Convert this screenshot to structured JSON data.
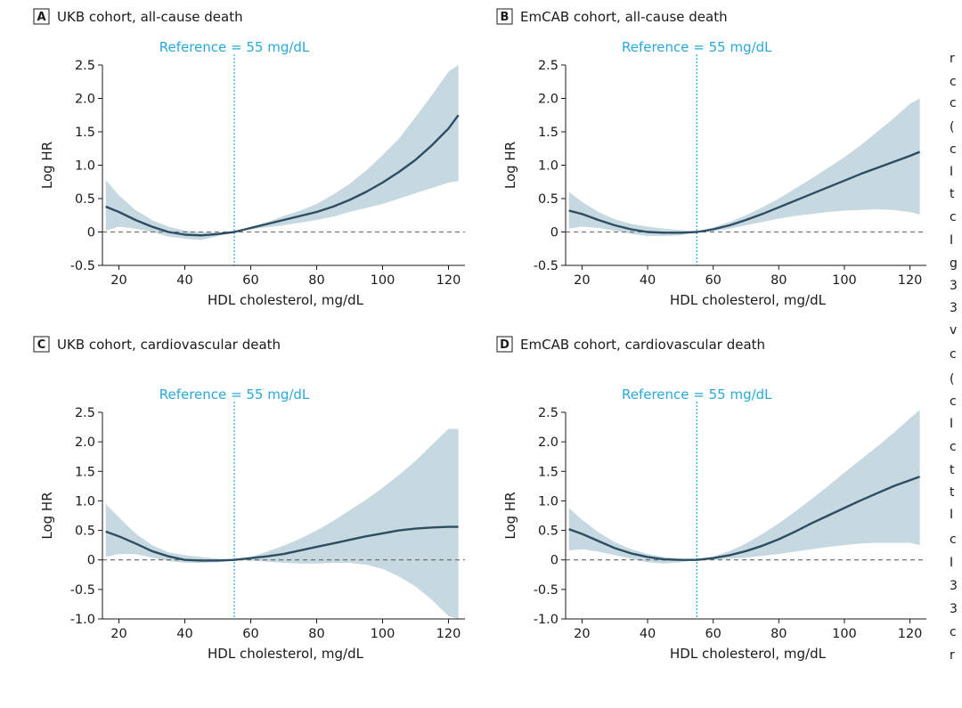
{
  "sidebar_fragments": [
    "r",
    "c",
    "c",
    "(",
    "c",
    "I",
    "t",
    "c",
    "I",
    "g",
    "3",
    "3",
    "v",
    "c",
    "(",
    "c",
    "I",
    "c",
    "t",
    "t",
    "I",
    "c",
    "I",
    "3",
    "3",
    "c",
    "r"
  ],
  "chart_data": [
    {
      "type": "line",
      "panel_letter": "A",
      "title": "UKB cohort, all-cause death",
      "xlabel": "HDL cholesterol, mg/dL",
      "ylabel": "Log HR",
      "reference_label": "Reference = 55 mg/dL",
      "reference_x": 55,
      "xlim": [
        15,
        125
      ],
      "ylim": [
        -0.5,
        2.5
      ],
      "xticks": [
        20,
        40,
        60,
        80,
        100,
        120
      ],
      "yticks": [
        -0.5,
        0,
        0.5,
        1.0,
        1.5,
        2.0,
        2.5
      ],
      "ytick_labels": [
        "-0.5",
        "0",
        "0.5",
        "1.0",
        "1.5",
        "2.0",
        "2.5"
      ],
      "series": [
        {
          "name": "Log HR",
          "x": [
            16,
            20,
            25,
            30,
            35,
            40,
            45,
            50,
            55,
            60,
            65,
            70,
            75,
            80,
            85,
            90,
            95,
            100,
            105,
            110,
            115,
            120,
            123
          ],
          "y": [
            0.38,
            0.3,
            0.18,
            0.08,
            0.0,
            -0.04,
            -0.05,
            -0.03,
            0.0,
            0.06,
            0.12,
            0.18,
            0.24,
            0.3,
            0.38,
            0.48,
            0.6,
            0.74,
            0.9,
            1.08,
            1.3,
            1.55,
            1.75
          ]
        },
        {
          "name": "95% CI upper",
          "x": [
            16,
            20,
            25,
            30,
            35,
            40,
            45,
            50,
            55,
            60,
            65,
            70,
            75,
            80,
            85,
            90,
            95,
            100,
            105,
            110,
            115,
            120,
            123
          ],
          "y": [
            0.78,
            0.55,
            0.33,
            0.18,
            0.08,
            0.02,
            0.0,
            -0.01,
            0.0,
            0.08,
            0.15,
            0.24,
            0.32,
            0.42,
            0.56,
            0.72,
            0.92,
            1.15,
            1.4,
            1.72,
            2.05,
            2.4,
            2.5
          ]
        },
        {
          "name": "95% CI lower",
          "x": [
            16,
            20,
            25,
            30,
            35,
            40,
            45,
            50,
            55,
            60,
            65,
            70,
            75,
            80,
            85,
            90,
            95,
            100,
            105,
            110,
            115,
            120,
            123
          ],
          "y": [
            0.02,
            0.08,
            0.05,
            0.0,
            -0.07,
            -0.1,
            -0.12,
            -0.06,
            0.0,
            0.04,
            0.07,
            0.1,
            0.14,
            0.18,
            0.23,
            0.3,
            0.36,
            0.42,
            0.5,
            0.58,
            0.66,
            0.74,
            0.76
          ]
        }
      ]
    },
    {
      "type": "line",
      "panel_letter": "B",
      "title": "EmCAB cohort, all-cause death",
      "xlabel": "HDL cholesterol, mg/dL",
      "ylabel": "Log HR",
      "reference_label": "Reference = 55 mg/dL",
      "reference_x": 55,
      "xlim": [
        15,
        125
      ],
      "ylim": [
        -0.5,
        2.5
      ],
      "xticks": [
        20,
        40,
        60,
        80,
        100,
        120
      ],
      "yticks": [
        -0.5,
        0,
        0.5,
        1.0,
        1.5,
        2.0,
        2.5
      ],
      "ytick_labels": [
        "-0.5",
        "0",
        "0.5",
        "1.0",
        "1.5",
        "2.0",
        "2.5"
      ],
      "series": [
        {
          "name": "Log HR",
          "x": [
            16,
            20,
            25,
            30,
            35,
            40,
            45,
            50,
            55,
            60,
            65,
            70,
            75,
            80,
            85,
            90,
            95,
            100,
            105,
            110,
            115,
            120,
            123
          ],
          "y": [
            0.32,
            0.27,
            0.18,
            0.1,
            0.04,
            0.0,
            -0.01,
            -0.01,
            0.0,
            0.04,
            0.1,
            0.18,
            0.27,
            0.37,
            0.47,
            0.57,
            0.67,
            0.77,
            0.87,
            0.96,
            1.05,
            1.14,
            1.2
          ]
        },
        {
          "name": "95% CI upper",
          "x": [
            16,
            20,
            25,
            30,
            35,
            40,
            45,
            50,
            55,
            60,
            65,
            70,
            75,
            80,
            85,
            90,
            95,
            100,
            105,
            110,
            115,
            120,
            123
          ],
          "y": [
            0.6,
            0.45,
            0.3,
            0.19,
            0.12,
            0.08,
            0.05,
            0.03,
            0.0,
            0.07,
            0.15,
            0.25,
            0.37,
            0.5,
            0.65,
            0.8,
            0.96,
            1.12,
            1.3,
            1.5,
            1.7,
            1.92,
            2.0
          ]
        },
        {
          "name": "95% CI lower",
          "x": [
            16,
            20,
            25,
            30,
            35,
            40,
            45,
            50,
            55,
            60,
            65,
            70,
            75,
            80,
            85,
            90,
            95,
            100,
            105,
            110,
            115,
            120,
            123
          ],
          "y": [
            0.05,
            0.08,
            0.06,
            0.02,
            -0.03,
            -0.06,
            -0.06,
            -0.05,
            0.0,
            0.01,
            0.05,
            0.1,
            0.15,
            0.2,
            0.24,
            0.27,
            0.3,
            0.32,
            0.33,
            0.34,
            0.33,
            0.3,
            0.26
          ]
        }
      ]
    },
    {
      "type": "line",
      "panel_letter": "C",
      "title": "UKB cohort, cardiovascular death",
      "xlabel": "HDL cholesterol, mg/dL",
      "ylabel": "Log HR",
      "reference_label": "Reference = 55 mg/dL",
      "reference_x": 55,
      "xlim": [
        15,
        125
      ],
      "ylim": [
        -1.0,
        2.5
      ],
      "xticks": [
        20,
        40,
        60,
        80,
        100,
        120
      ],
      "yticks": [
        -1.0,
        -0.5,
        0,
        0.5,
        1.0,
        1.5,
        2.0,
        2.5
      ],
      "ytick_labels": [
        "-1.0",
        "-0.5",
        "0",
        "0.5",
        "1.0",
        "1.5",
        "2.0",
        "2.5"
      ],
      "series": [
        {
          "name": "Log HR",
          "x": [
            16,
            20,
            25,
            30,
            35,
            40,
            45,
            50,
            55,
            60,
            65,
            70,
            75,
            80,
            85,
            90,
            95,
            100,
            105,
            110,
            115,
            120,
            123
          ],
          "y": [
            0.48,
            0.4,
            0.28,
            0.15,
            0.06,
            0.0,
            -0.01,
            -0.01,
            0.0,
            0.03,
            0.06,
            0.1,
            0.16,
            0.22,
            0.28,
            0.34,
            0.4,
            0.45,
            0.5,
            0.53,
            0.55,
            0.56,
            0.56
          ]
        },
        {
          "name": "95% CI upper",
          "x": [
            16,
            20,
            25,
            30,
            35,
            40,
            45,
            50,
            55,
            60,
            65,
            70,
            75,
            80,
            85,
            90,
            95,
            100,
            105,
            110,
            115,
            120,
            123
          ],
          "y": [
            0.95,
            0.72,
            0.45,
            0.25,
            0.13,
            0.08,
            0.05,
            0.02,
            0.0,
            0.05,
            0.14,
            0.24,
            0.36,
            0.5,
            0.66,
            0.84,
            1.02,
            1.22,
            1.44,
            1.68,
            1.95,
            2.22,
            2.22
          ]
        },
        {
          "name": "95% CI lower",
          "x": [
            16,
            20,
            25,
            30,
            35,
            40,
            45,
            50,
            55,
            60,
            65,
            70,
            75,
            80,
            85,
            90,
            95,
            100,
            105,
            110,
            115,
            120,
            123
          ],
          "y": [
            0.05,
            0.1,
            0.1,
            0.04,
            -0.02,
            -0.05,
            -0.05,
            -0.04,
            0.0,
            -0.01,
            -0.03,
            -0.05,
            -0.06,
            -0.06,
            -0.05,
            -0.05,
            -0.08,
            -0.15,
            -0.28,
            -0.45,
            -0.68,
            -0.95,
            -1.0
          ]
        }
      ]
    },
    {
      "type": "line",
      "panel_letter": "D",
      "title": "EmCAB cohort, cardiovascular death",
      "xlabel": "HDL cholesterol, mg/dL",
      "ylabel": "Log HR",
      "reference_label": "Reference = 55 mg/dL",
      "reference_x": 55,
      "xlim": [
        15,
        125
      ],
      "ylim": [
        -1.0,
        2.5
      ],
      "xticks": [
        20,
        40,
        60,
        80,
        100,
        120
      ],
      "yticks": [
        -1.0,
        -0.5,
        0,
        0.5,
        1.0,
        1.5,
        2.0,
        2.5
      ],
      "ytick_labels": [
        "-1.0",
        "-0.5",
        "0",
        "0.5",
        "1.0",
        "1.5",
        "2.0",
        "2.5"
      ],
      "series": [
        {
          "name": "Log HR",
          "x": [
            16,
            20,
            25,
            30,
            35,
            40,
            45,
            50,
            55,
            60,
            65,
            70,
            75,
            80,
            85,
            90,
            95,
            100,
            105,
            110,
            115,
            120,
            123
          ],
          "y": [
            0.52,
            0.44,
            0.32,
            0.2,
            0.11,
            0.05,
            0.01,
            0.0,
            0.0,
            0.03,
            0.08,
            0.15,
            0.24,
            0.35,
            0.48,
            0.62,
            0.75,
            0.88,
            1.01,
            1.13,
            1.25,
            1.35,
            1.41
          ]
        },
        {
          "name": "95% CI upper",
          "x": [
            16,
            20,
            25,
            30,
            35,
            40,
            45,
            50,
            55,
            60,
            65,
            70,
            75,
            80,
            85,
            90,
            95,
            100,
            105,
            110,
            115,
            120,
            123
          ],
          "y": [
            0.88,
            0.68,
            0.47,
            0.3,
            0.18,
            0.1,
            0.05,
            0.02,
            0.0,
            0.06,
            0.15,
            0.28,
            0.44,
            0.62,
            0.82,
            1.03,
            1.25,
            1.48,
            1.7,
            1.92,
            2.15,
            2.4,
            2.54
          ]
        },
        {
          "name": "95% CI lower",
          "x": [
            16,
            20,
            25,
            30,
            35,
            40,
            45,
            50,
            55,
            60,
            65,
            70,
            75,
            80,
            85,
            90,
            95,
            100,
            105,
            110,
            115,
            120,
            123
          ],
          "y": [
            0.16,
            0.18,
            0.14,
            0.08,
            0.02,
            -0.04,
            -0.06,
            -0.04,
            0.0,
            0.0,
            0.02,
            0.04,
            0.07,
            0.1,
            0.14,
            0.18,
            0.22,
            0.25,
            0.28,
            0.29,
            0.29,
            0.29,
            0.25
          ]
        }
      ]
    }
  ],
  "colors": {
    "ci_band": "#c6d8e0",
    "line": "#2d4e62",
    "reference": "#2aa8d8",
    "zero": "#666666",
    "axis": "#1a1a1a",
    "text": "#1a1a1a"
  }
}
